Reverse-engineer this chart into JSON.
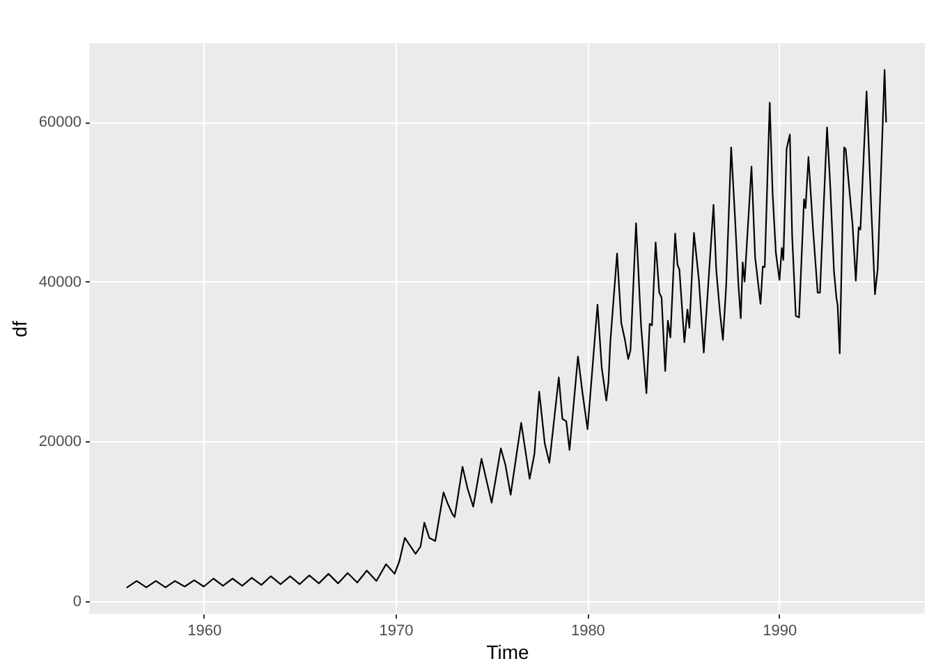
{
  "chart_data": {
    "type": "line",
    "xlabel": "Time",
    "ylabel": "df",
    "xlim": [
      1954.02,
      1997.6
    ],
    "xticks": [
      1960,
      1970,
      1980,
      1990
    ],
    "ylim": [
      -1600,
      69850
    ],
    "yticks": [
      0,
      20000,
      40000,
      60000
    ],
    "grid": true,
    "marker": "none",
    "line_style": "solid",
    "series": [
      {
        "color": "#000000",
        "x": [
          1956.0,
          1956.5,
          1957.0,
          1957.5,
          1958.0,
          1958.5,
          1959.0,
          1959.5,
          1960.0,
          1960.5,
          1961.0,
          1961.5,
          1962.0,
          1962.5,
          1963.0,
          1963.5,
          1964.0,
          1964.5,
          1965.0,
          1965.5,
          1966.0,
          1966.5,
          1967.0,
          1967.5,
          1968.0,
          1968.5,
          1969.0,
          1969.5,
          1969.95,
          1970.2,
          1970.48,
          1971.04,
          1971.3,
          1971.5,
          1971.76,
          1972.07,
          1972.5,
          1972.7,
          1972.96,
          1973.08,
          1973.2,
          1973.49,
          1973.75,
          1974.05,
          1974.48,
          1975.01,
          1975.49,
          1975.73,
          1976.0,
          1976.55,
          1976.99,
          1977.24,
          1977.49,
          1977.78,
          1978.02,
          1978.51,
          1978.7,
          1978.9,
          1979.07,
          1979.51,
          1979.75,
          1980.01,
          1980.53,
          1980.75,
          1980.99,
          1981.1,
          1981.2,
          1981.55,
          1981.77,
          1981.96,
          1982.13,
          1982.25,
          1982.54,
          1982.8,
          1983.08,
          1983.25,
          1983.37,
          1983.56,
          1983.75,
          1983.87,
          1984.06,
          1984.2,
          1984.33,
          1984.58,
          1984.7,
          1984.8,
          1985.06,
          1985.22,
          1985.32,
          1985.56,
          1985.82,
          1986.07,
          1986.58,
          1986.72,
          1986.92,
          1987.07,
          1987.24,
          1987.5,
          1987.7,
          1987.88,
          1988.0,
          1988.1,
          1988.2,
          1988.56,
          1988.75,
          1989.03,
          1989.15,
          1989.25,
          1989.51,
          1989.66,
          1989.83,
          1990.02,
          1990.14,
          1990.22,
          1990.39,
          1990.56,
          1990.68,
          1990.87,
          1991.04,
          1991.3,
          1991.38,
          1991.53,
          1991.77,
          1992.01,
          1992.13,
          1992.5,
          1992.67,
          1992.86,
          1992.99,
          1993.05,
          1993.16,
          1993.39,
          1993.47,
          1993.83,
          1994.0,
          1994.15,
          1994.24,
          1994.56,
          1994.8,
          1995.0,
          1995.14,
          1995.5,
          1995.58
        ],
        "values": [
          1700,
          2500,
          1700,
          2500,
          1700,
          2500,
          1800,
          2600,
          1800,
          2800,
          1900,
          2800,
          1900,
          2900,
          2000,
          3100,
          2100,
          3100,
          2100,
          3200,
          2200,
          3400,
          2200,
          3500,
          2300,
          3800,
          2500,
          4600,
          3400,
          5000,
          7900,
          5900,
          6800,
          9800,
          7900,
          7500,
          13600,
          12300,
          10900,
          10500,
          12300,
          16800,
          14100,
          11800,
          17800,
          12300,
          19100,
          17000,
          13300,
          22300,
          15300,
          18400,
          26200,
          19700,
          17300,
          28000,
          22800,
          22500,
          18900,
          30600,
          26000,
          21500,
          37100,
          29200,
          25100,
          27400,
          32500,
          43500,
          34800,
          32700,
          30300,
          31400,
          47300,
          34500,
          26000,
          34700,
          34500,
          44900,
          38600,
          38000,
          28800,
          35100,
          33000,
          46000,
          42100,
          41500,
          32400,
          36500,
          34200,
          46100,
          40100,
          31100,
          49600,
          41500,
          36000,
          32700,
          39500,
          56800,
          48000,
          39500,
          35400,
          42400,
          40000,
          54400,
          43000,
          37200,
          41900,
          41800,
          62400,
          51100,
          43600,
          40200,
          44200,
          42700,
          56600,
          58400,
          45700,
          35700,
          35500,
          50300,
          49200,
          55600,
          46500,
          38600,
          38600,
          59300,
          51800,
          41300,
          37900,
          37100,
          31000,
          56800,
          56600,
          47100,
          40100,
          46800,
          46500,
          63800,
          49500,
          38400,
          41600,
          66500,
          60000
        ]
      }
    ]
  }
}
